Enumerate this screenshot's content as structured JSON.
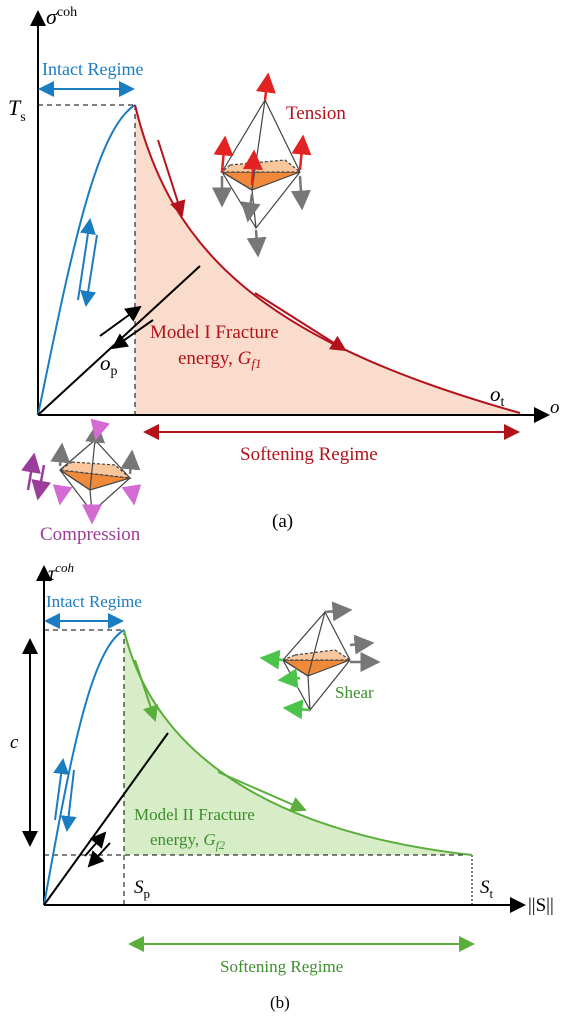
{
  "panel_a": {
    "y_axis_label": {
      "base": "σ",
      "sup": "coh"
    },
    "intact_regime": "Intact Regime",
    "peak_label": {
      "base": "T",
      "sub": "s"
    },
    "tension": "Tension",
    "fracture_line1": "Model I Fracture",
    "fracture_line2": {
      "text": "energy, ",
      "base": "G",
      "sub": "f1"
    },
    "start_label": {
      "base": "o",
      "sub": "p"
    },
    "end_label": {
      "base": "o",
      "sub": "t"
    },
    "x_axis_label": "o",
    "softening_regime": "Softening Regime",
    "compression": "Compression",
    "caption": "(a)"
  },
  "panel_b": {
    "y_axis_label": {
      "base": "τ",
      "sup": "coh"
    },
    "intact_regime": "Intact Regime",
    "cohesion_label": "c",
    "shear": "Shear",
    "fracture_line1": "Model II Fracture",
    "fracture_line2": {
      "text": "energy, ",
      "base": "G",
      "sub": "f2"
    },
    "start_label": {
      "base": "S",
      "sub": "p"
    },
    "end_label": {
      "base": "S",
      "sub": "t"
    },
    "x_axis_label": "||S||",
    "softening_regime": "Softening Regime",
    "caption": "(b)"
  }
}
